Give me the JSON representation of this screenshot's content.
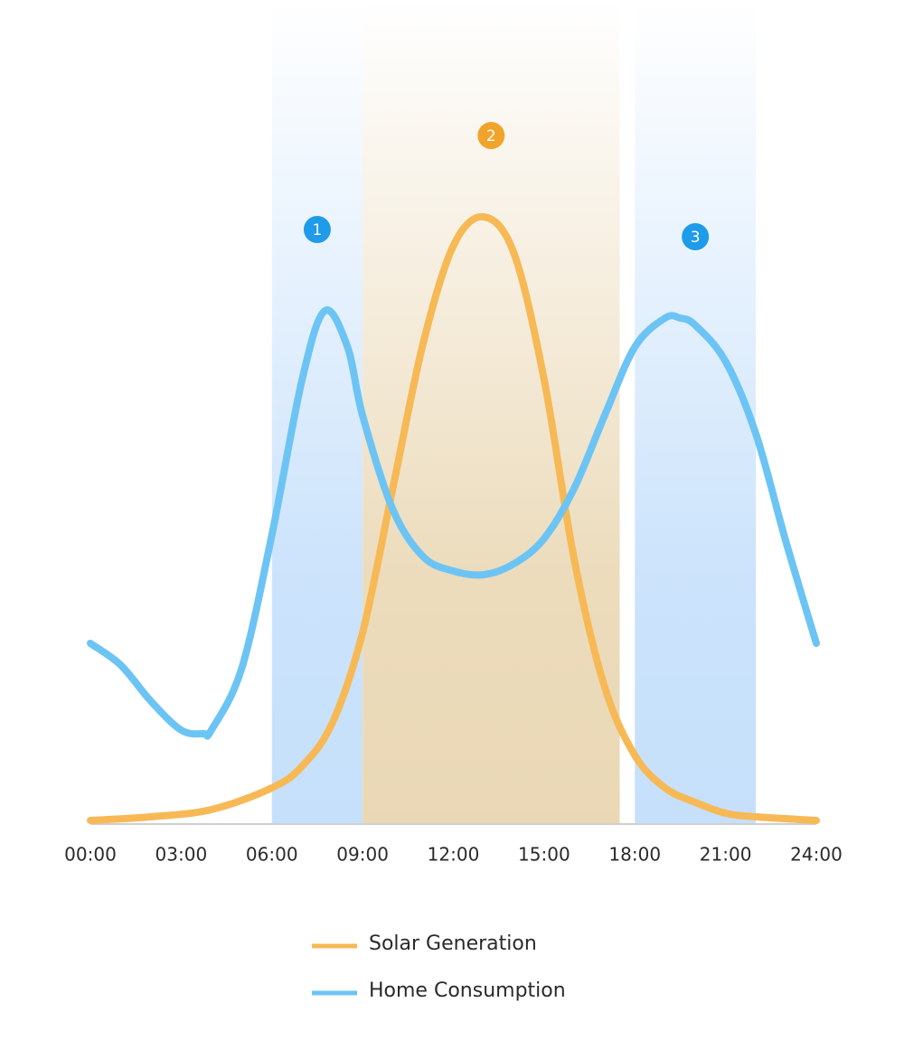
{
  "chart_data": {
    "type": "line",
    "xlim": [
      0,
      24
    ],
    "ylim": [
      0,
      100
    ],
    "xticks": [
      {
        "value": 0,
        "label": "00:00"
      },
      {
        "value": 3,
        "label": "03:00"
      },
      {
        "value": 6,
        "label": "06:00"
      },
      {
        "value": 9,
        "label": "09:00"
      },
      {
        "value": 12,
        "label": "12:00"
      },
      {
        "value": 15,
        "label": "15:00"
      },
      {
        "value": 18,
        "label": "18:00"
      },
      {
        "value": 21,
        "label": "21:00"
      },
      {
        "value": 24,
        "label": "24:00"
      }
    ],
    "highlights": [
      {
        "start": 6,
        "end": 9,
        "label": "1",
        "color": "#1e9be9",
        "band_color": "#c6e0fb"
      },
      {
        "start": 9,
        "end": 17.5,
        "label": "2",
        "color": "#f2a42a",
        "band_color": "#ead8b5"
      },
      {
        "start": 18,
        "end": 22,
        "label": "3",
        "color": "#1e9be9",
        "band_color": "#c6e0fb"
      }
    ],
    "series": [
      {
        "name": "Solar Generation",
        "color": "#f7b955",
        "x": [
          0,
          2,
          4,
          6,
          7,
          8,
          9,
          10,
          11,
          12,
          13,
          14,
          15,
          16,
          17,
          18,
          19,
          20,
          21,
          22,
          24
        ],
        "values": [
          0.5,
          1,
          2,
          5,
          8,
          14,
          26.5,
          46.5,
          66.5,
          80,
          84,
          79,
          61.5,
          36.5,
          19,
          9.5,
          5,
          3,
          1.5,
          1,
          0.5
        ]
      },
      {
        "name": "Home Consumption",
        "color": "#6cc4f5",
        "x": [
          0,
          1,
          2,
          3,
          3.75,
          4,
          5,
          6,
          7,
          7.75,
          8.5,
          9,
          10,
          11,
          12,
          13,
          14,
          15,
          16,
          17,
          18,
          19,
          19.5,
          20,
          21,
          22,
          23,
          24
        ],
        "values": [
          25,
          22,
          17,
          13,
          12.5,
          13,
          21.5,
          40,
          61.5,
          71,
          66,
          56.5,
          43.5,
          37,
          35,
          34.5,
          36,
          39.5,
          46.5,
          56.5,
          66,
          70,
          70,
          69,
          64,
          54,
          39,
          25
        ]
      }
    ]
  }
}
